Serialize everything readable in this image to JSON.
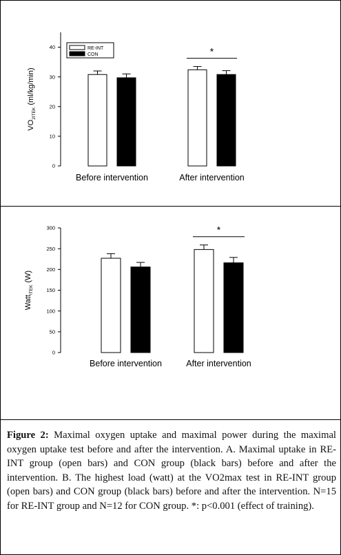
{
  "caption": {
    "label": "Figure 2:",
    "text": " Maximal oxygen uptake and maximal power during the maximal oxygen uptake test before and after the intervention. A. Maximal uptake in RE-INT group (open bars) and CON group (black bars) before and after the intervention. B. The highest load (watt) at the VO2max test in RE-INT group (open bars) and CON group (black bars) before and after the intervention. N=15 for RE-INT group and N=12 for CON group. *: p<0.001 (effect of training)."
  },
  "chart_data": [
    {
      "type": "bar",
      "title": "",
      "ylabel_main": "VO",
      "ylabel_sub": "2ITEK",
      "ylabel_unit": " (ml/kg/min)",
      "categories": [
        "Before intervention",
        "After intervention"
      ],
      "series": [
        {
          "name": "RE-INT",
          "fill": "#ffffff",
          "values": [
            30.8,
            32.4
          ],
          "errors": [
            1.2,
            1.1
          ]
        },
        {
          "name": "CON",
          "fill": "#000000",
          "values": [
            29.7,
            30.8
          ],
          "errors": [
            1.3,
            1.3
          ]
        }
      ],
      "ylim": [
        0,
        45
      ],
      "yticks": [
        0,
        10,
        20,
        30,
        40
      ],
      "legend_position": "top-left",
      "significance": {
        "label": "*",
        "category_index": 1
      }
    },
    {
      "type": "bar",
      "title": "",
      "ylabel_main": "Watt",
      "ylabel_sub": "ITEK",
      "ylabel_unit": " (W)",
      "categories": [
        "Before intervention",
        "After intervention"
      ],
      "series": [
        {
          "name": "RE-INT",
          "fill": "#ffffff",
          "values": [
            227,
            248
          ],
          "errors": [
            11,
            11
          ]
        },
        {
          "name": "CON",
          "fill": "#000000",
          "values": [
            206,
            216
          ],
          "errors": [
            11,
            13
          ]
        }
      ],
      "ylim": [
        0,
        300
      ],
      "yticks": [
        0,
        50,
        100,
        150,
        200,
        250,
        300
      ],
      "legend_position": "none",
      "significance": {
        "label": "*",
        "category_index": 1
      }
    }
  ]
}
